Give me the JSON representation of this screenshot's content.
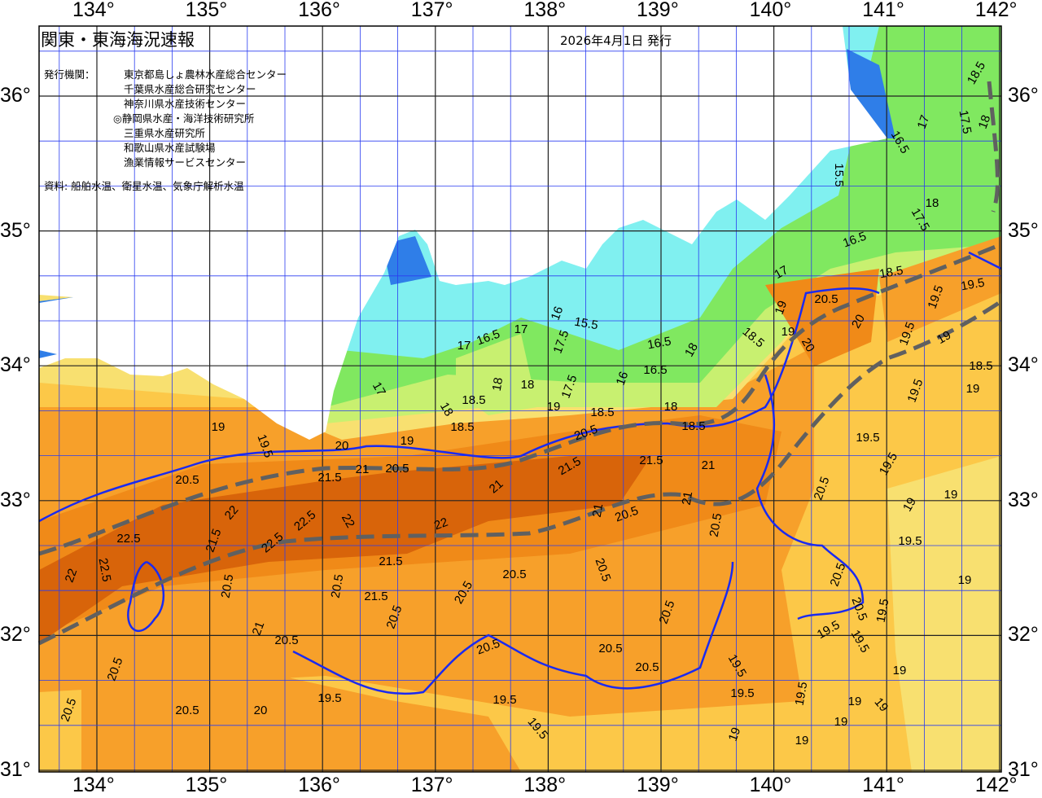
{
  "header": {
    "title": "関東・東海海況速報",
    "issue_date": "2026年4月1日 発行",
    "issuers_label": "発行機関：",
    "issuers": [
      "東京都島しょ農林水産総合センター",
      "千葉県水産総合研究センター",
      "神奈川県水産技術センター",
      "◎静岡県水産・海洋技術研究所",
      "三重県水産研究所",
      "和歌山県水産試験場",
      "漁業情報サービスセンター"
    ],
    "sources": "資料: 船舶水温、衛星水温、気象庁解析水温"
  },
  "axes": {
    "longitudes": [
      "134°",
      "135°",
      "136°",
      "137°",
      "138°",
      "139°",
      "140°",
      "141°",
      "142°"
    ],
    "latitudes": [
      "36°",
      "35°",
      "34°",
      "33°",
      "32°",
      "31°"
    ]
  },
  "colors": {
    "land": "#ffffff",
    "t15": "#2f7ee8",
    "t16": "#80f0f0",
    "t17": "#80e860",
    "t18": "#c8f070",
    "t19": "#f8e070",
    "t19_5": "#fcc848",
    "t20_5": "#f7a02a",
    "t21": "#f08a18",
    "t22": "#d8640a",
    "contour_20": "#1a2af0",
    "kuroshio_axis": "#606060",
    "grid": "#2a3cf0"
  },
  "contour_labels": [
    "18.5",
    "16.5",
    "17",
    "17.5",
    "18",
    "15.5",
    "18",
    "17.5",
    "16.5",
    "18.5",
    "17",
    "19.5",
    "19.5",
    "20.5",
    "20",
    "19",
    "19.5",
    "19",
    "18.5",
    "19",
    "19.5",
    "18.5",
    "19",
    "20",
    "15.5",
    "16",
    "17.5",
    "17",
    "16.5",
    "17",
    "16.5",
    "18",
    "16.5",
    "16",
    "18",
    "18.5",
    "18",
    "17.5",
    "19",
    "17",
    "18",
    "18.5",
    "18.5",
    "18",
    "18.5",
    "20.5",
    "19",
    "19.5",
    "19",
    "20",
    "19.5",
    "19.5",
    "21",
    "21.5",
    "21.5",
    "21",
    "20.5",
    "21",
    "21.5",
    "20.5",
    "21",
    "21",
    "20.5",
    "22",
    "22.5",
    "22.5",
    "22",
    "22",
    "21.5",
    "22.5",
    "22.5",
    "22",
    "20.5",
    "20.5",
    "19",
    "19",
    "19.5",
    "20.5",
    "20.5",
    "20.5",
    "21.5",
    "20.5",
    "21.5",
    "20.5",
    "20.5",
    "21",
    "20.5",
    "20.5",
    "20.5",
    "20.5",
    "19.5",
    "19.5",
    "20.5",
    "19.5",
    "20.5",
    "20.5",
    "19.5",
    "19.5",
    "19.5",
    "19",
    "19",
    "19.5",
    "20.5",
    "20.5",
    "19.5",
    "19.5",
    "19",
    "19",
    "19",
    "19",
    "19",
    "20",
    "20.5"
  ]
}
